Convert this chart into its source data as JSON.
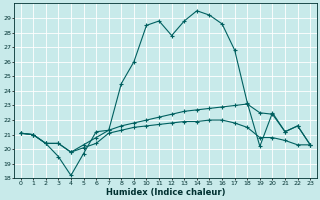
{
  "xlabel": "Humidex (Indice chaleur)",
  "background_color": "#c8eaea",
  "grid_color": "#aacccc",
  "line_color": "#006060",
  "xlim": [
    -0.5,
    23.5
  ],
  "ylim": [
    18,
    30
  ],
  "xtick_labels": [
    "0",
    "1",
    "2",
    "3",
    "4",
    "5",
    "6",
    "7",
    "8",
    "9",
    "10",
    "11",
    "12",
    "13",
    "14",
    "15",
    "16",
    "17",
    "18",
    "19",
    "20",
    "21",
    "22",
    "23"
  ],
  "ytick_labels": [
    "18",
    "19",
    "20",
    "21",
    "22",
    "23",
    "24",
    "25",
    "26",
    "27",
    "28",
    "29"
  ],
  "line1_x": [
    0,
    1,
    2,
    3,
    4,
    5,
    6,
    7,
    8,
    9,
    10,
    11,
    12,
    13,
    14,
    15,
    16,
    17,
    18,
    19,
    20,
    21,
    22,
    23
  ],
  "line1_y": [
    21.1,
    21.0,
    20.4,
    19.5,
    18.2,
    19.7,
    21.2,
    21.3,
    24.5,
    26.0,
    28.5,
    28.8,
    27.8,
    28.8,
    29.5,
    29.2,
    28.6,
    26.8,
    23.2,
    20.2,
    22.5,
    21.2,
    21.6,
    20.3
  ],
  "line2_x": [
    0,
    1,
    2,
    3,
    4,
    5,
    6,
    7,
    8,
    9,
    10,
    11,
    12,
    13,
    14,
    15,
    16,
    17,
    18,
    19,
    20,
    21,
    22,
    23
  ],
  "line2_y": [
    21.1,
    21.0,
    20.4,
    20.4,
    19.8,
    20.3,
    20.8,
    21.3,
    21.6,
    21.8,
    22.0,
    22.2,
    22.4,
    22.6,
    22.7,
    22.8,
    22.9,
    23.0,
    23.1,
    22.5,
    22.4,
    21.2,
    21.6,
    20.3
  ],
  "line3_x": [
    0,
    1,
    2,
    3,
    4,
    5,
    6,
    7,
    8,
    9,
    10,
    11,
    12,
    13,
    14,
    15,
    16,
    17,
    18,
    19,
    20,
    21,
    22,
    23
  ],
  "line3_y": [
    21.1,
    21.0,
    20.4,
    20.4,
    19.8,
    20.1,
    20.4,
    21.1,
    21.3,
    21.5,
    21.6,
    21.7,
    21.8,
    21.9,
    21.9,
    22.0,
    22.0,
    21.8,
    21.5,
    20.8,
    20.8,
    20.6,
    20.3,
    20.3
  ]
}
